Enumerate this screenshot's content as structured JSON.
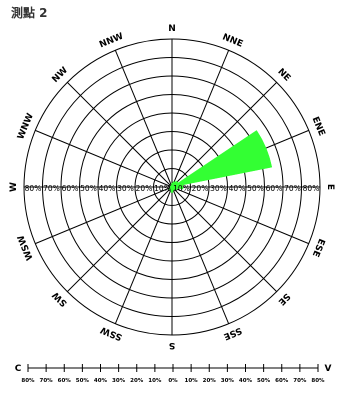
{
  "chart_data": {
    "type": "wind-rose",
    "title": "測點 2",
    "directions": [
      "N",
      "NNE",
      "NE",
      "ENE",
      "E",
      "ESE",
      "SE",
      "SSE",
      "S",
      "SSW",
      "SW",
      "WSW",
      "W",
      "WNW",
      "NW",
      "NNW"
    ],
    "radial_ticks": [
      "10%",
      "20%",
      "30%",
      "40%",
      "50%",
      "60%",
      "70%",
      "80%"
    ],
    "bottom_axis_left_label": "C",
    "bottom_axis_right_label": "V",
    "bottom_axis_ticks": [
      "80%",
      "70%",
      "60%",
      "50%",
      "40%",
      "30%",
      "20%",
      "10%",
      "0%",
      "10%",
      "20%",
      "30%",
      "40%",
      "50%",
      "60%",
      "70%",
      "80%"
    ],
    "series": [
      {
        "color": "#33ff33",
        "values": [
          2,
          3,
          4,
          55,
          6,
          3,
          2,
          2,
          3,
          2,
          2,
          1,
          1,
          1,
          1,
          1
        ]
      }
    ],
    "rmax": 80
  }
}
